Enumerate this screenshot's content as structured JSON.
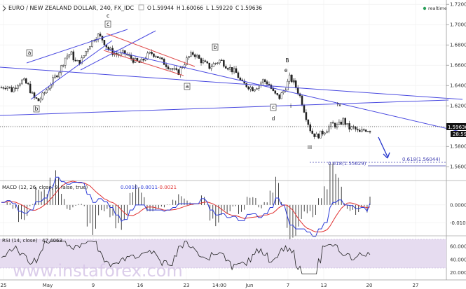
{
  "header": {
    "title": "EURO / NEW ZEALAND DOLLAR, 240, FX_IDC",
    "ohlc": [
      {
        "k": "O",
        "v": "1.59944"
      },
      {
        "k": "H",
        "v": "1.60066"
      },
      {
        "k": "L",
        "v": "1.59220"
      },
      {
        "k": "C",
        "v": "1.59636"
      }
    ],
    "realtime": "realtime"
  },
  "price_axis": {
    "ticks": [
      "1.72000",
      "1.70000",
      "1.68000",
      "1.66000",
      "1.64000",
      "1.62000",
      "1.60000",
      "1.58000",
      "1.56000"
    ],
    "current_price": "1.59636",
    "countdown": "28:59"
  },
  "time_axis": [
    "25",
    "May",
    "9",
    "16",
    "23",
    "14:00",
    "Jun",
    "7",
    "13",
    "20",
    "27"
  ],
  "wave_labels": [
    {
      "t": "a",
      "boxed": true
    },
    {
      "t": "b",
      "boxed": true
    },
    {
      "t": "c",
      "boxed": false
    },
    {
      "t": "c",
      "boxed": true
    },
    {
      "t": "a",
      "boxed": true
    },
    {
      "t": "b",
      "boxed": true
    },
    {
      "t": "c",
      "boxed": true
    },
    {
      "t": "d",
      "boxed": false
    },
    {
      "t": "B",
      "boxed": false
    },
    {
      "t": "e",
      "boxed": false
    },
    {
      "t": "ii",
      "boxed": false
    },
    {
      "t": "i",
      "boxed": false
    },
    {
      "t": "iv",
      "boxed": false
    },
    {
      "t": "iii",
      "boxed": false
    }
  ],
  "fib_levels": [
    {
      "label": "0.618(1.56044)"
    },
    {
      "label": "0.618(1.55629)"
    }
  ],
  "macd": {
    "title": "MACD (12, 26, close, 9, false, true)",
    "values": [
      "0.0010",
      "-0.0011",
      "-0.0021"
    ],
    "ticks": [
      "0.0000",
      "-0.0100"
    ]
  },
  "rsi": {
    "title": "RSI (14, close)",
    "value": "47.4063",
    "ticks": [
      "60.0000",
      "40.0000",
      "20.0000"
    ]
  },
  "watermark": "www.instaforex.com",
  "colors": {
    "channel": "#4a4ae0",
    "wedge": "#e05050",
    "macd_line": "#2a3ad8",
    "signal_line": "#e03030",
    "rsi_line": "#222222",
    "rsi_band": "#e6dcf0",
    "watermark": "#d8c8e8",
    "realtime_dot": "#2aa05a",
    "price_tag": "#111111",
    "fib_text": "#4646b4"
  },
  "chart_data": {
    "type": "candlestick",
    "title": "EURO / NEW ZEALAND DOLLAR, 240, FX_IDC",
    "x_ticks": [
      "25",
      "May",
      "9",
      "16",
      "23",
      "14:00",
      "Jun",
      "7",
      "13",
      "20",
      "27"
    ],
    "ylim": [
      1.55,
      1.72
    ],
    "close_path": [
      1.638,
      1.64,
      1.635,
      1.642,
      1.645,
      1.64,
      1.628,
      1.625,
      1.632,
      1.64,
      1.648,
      1.656,
      1.668,
      1.672,
      1.662,
      1.665,
      1.676,
      1.684,
      1.69,
      1.685,
      1.676,
      1.672,
      1.67,
      1.672,
      1.668,
      1.664,
      1.662,
      1.668,
      1.672,
      1.67,
      1.664,
      1.66,
      1.656,
      1.652,
      1.66,
      1.668,
      1.672,
      1.666,
      1.662,
      1.658,
      1.662,
      1.665,
      1.66,
      1.656,
      1.652,
      1.642,
      1.64,
      1.637,
      1.64,
      1.645,
      1.642,
      1.632,
      1.628,
      1.636,
      1.648,
      1.64,
      1.628,
      1.61,
      1.594,
      1.59,
      1.593,
      1.598,
      1.602,
      1.6,
      1.606,
      1.598,
      1.598,
      1.593,
      1.597,
      1.596
    ],
    "current_price": 1.59636,
    "fib_targets": [
      1.56044,
      1.55629
    ],
    "macd_panel": {
      "ylim": [
        -0.016,
        0.012
      ],
      "ticks": [
        0.0,
        -0.01
      ],
      "macd": 0.001,
      "signal": -0.0011,
      "histogram": -0.0021
    },
    "rsi_panel": {
      "ylim": [
        10,
        75
      ],
      "band": [
        30,
        70
      ],
      "ticks": [
        60,
        40,
        20
      ],
      "value": 47.4063
    }
  }
}
